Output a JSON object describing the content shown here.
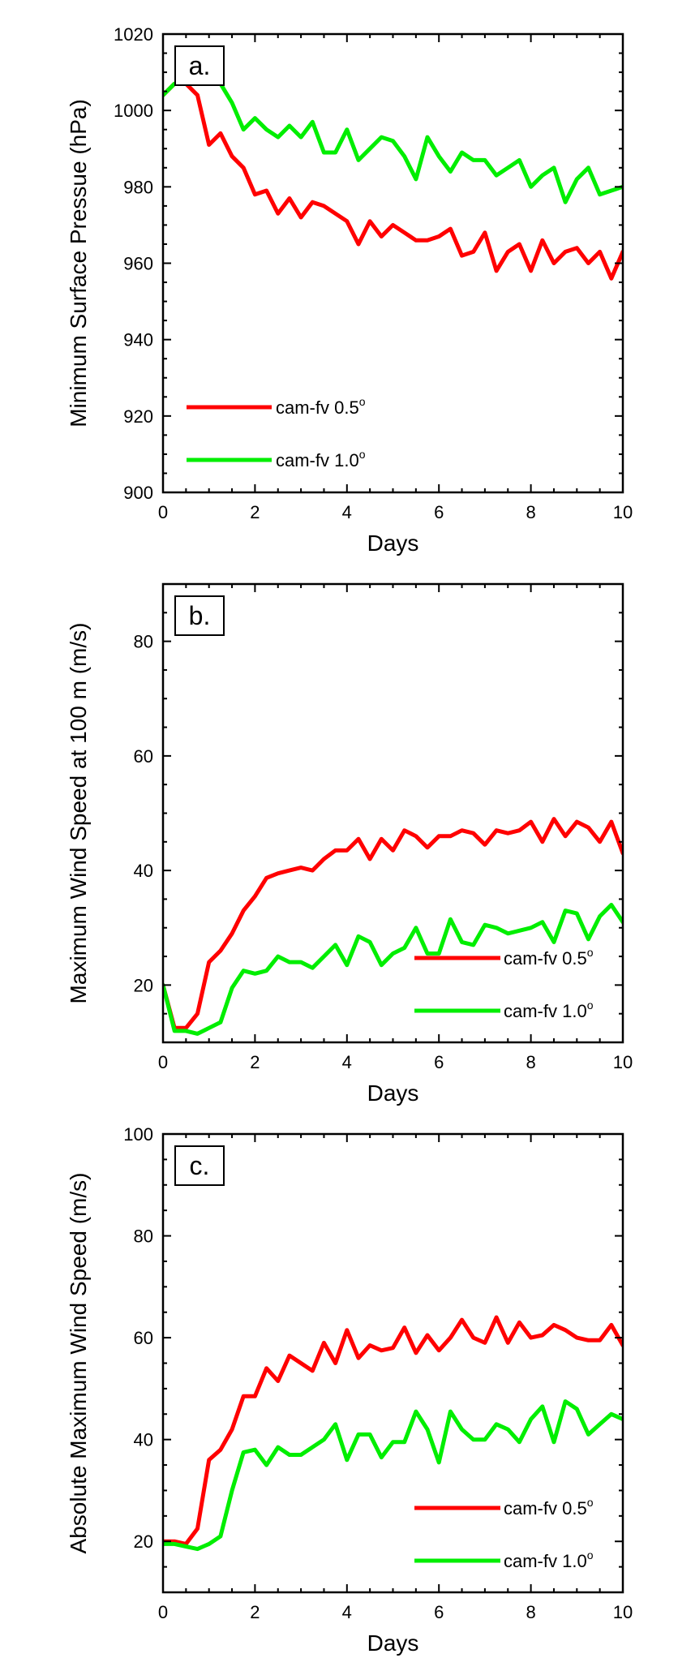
{
  "chart_data": [
    {
      "type": "line",
      "panel_label": "a.",
      "xlabel": "Days",
      "ylabel": "Minimum Surface Pressue (hPa)",
      "xlim": [
        0,
        10
      ],
      "ylim": [
        900,
        1020
      ],
      "xticks": [
        0,
        2,
        4,
        6,
        8,
        10
      ],
      "yticks": [
        900,
        920,
        940,
        960,
        980,
        1000,
        1020
      ],
      "legend_position": "bottom-left",
      "series": [
        {
          "name": "cam-fv 0.5",
          "name_sup": "o",
          "color": "#ff0000",
          "x": [
            0,
            0.25,
            0.5,
            0.75,
            1,
            1.25,
            1.5,
            1.75,
            2,
            2.25,
            2.5,
            2.75,
            3,
            3.25,
            3.5,
            3.75,
            4,
            4.25,
            4.5,
            4.75,
            5,
            5.25,
            5.5,
            5.75,
            6,
            6.25,
            6.5,
            6.75,
            7,
            7.25,
            7.5,
            7.75,
            8,
            8.25,
            8.5,
            8.75,
            9,
            9.25,
            9.5,
            9.75,
            10
          ],
          "y": [
            1004,
            1007,
            1007,
            1004,
            991,
            994,
            988,
            985,
            978,
            979,
            973,
            977,
            972,
            976,
            975,
            973,
            971,
            965,
            971,
            967,
            970,
            968,
            966,
            966,
            967,
            969,
            962,
            963,
            968,
            958,
            963,
            965,
            958,
            966,
            960,
            963,
            964,
            960,
            963,
            956,
            963
          ]
        },
        {
          "name": "cam-fv 1.0",
          "name_sup": "o",
          "color": "#00ee00",
          "x": [
            0,
            0.25,
            0.5,
            0.75,
            1,
            1.25,
            1.5,
            1.75,
            2,
            2.25,
            2.5,
            2.75,
            3,
            3.25,
            3.5,
            3.75,
            4,
            4.25,
            4.5,
            4.75,
            5,
            5.25,
            5.5,
            5.75,
            6,
            6.25,
            6.5,
            6.75,
            7,
            7.25,
            7.5,
            7.75,
            8,
            8.25,
            8.5,
            8.75,
            9,
            9.25,
            9.5,
            9.75,
            10
          ],
          "y": [
            1004,
            1007,
            1007,
            1008,
            1008,
            1007,
            1002,
            995,
            998,
            995,
            993,
            996,
            993,
            997,
            989,
            989,
            995,
            987,
            990,
            993,
            992,
            988,
            982,
            993,
            988,
            984,
            989,
            987,
            987,
            983,
            985,
            987,
            980,
            983,
            985,
            976,
            982,
            985,
            978,
            979,
            980
          ]
        }
      ]
    },
    {
      "type": "line",
      "panel_label": "b.",
      "xlabel": "Days",
      "ylabel": "Maximum Wind Speed at 100 m (m/s)",
      "xlim": [
        0,
        10
      ],
      "ylim": [
        10,
        90
      ],
      "xticks": [
        0,
        2,
        4,
        6,
        8,
        10
      ],
      "yticks": [
        20,
        40,
        60,
        80
      ],
      "legend_position": "bottom-right",
      "series": [
        {
          "name": "cam-fv 0.5",
          "name_sup": "o",
          "color": "#ff0000",
          "x": [
            0,
            0.25,
            0.5,
            0.75,
            1,
            1.25,
            1.5,
            1.75,
            2,
            2.25,
            2.5,
            2.75,
            3,
            3.25,
            3.5,
            3.75,
            4,
            4.25,
            4.5,
            4.75,
            5,
            5.25,
            5.5,
            5.75,
            6,
            6.25,
            6.5,
            6.75,
            7,
            7.25,
            7.5,
            7.75,
            8,
            8.25,
            8.5,
            8.75,
            9,
            9.25,
            9.5,
            9.75,
            10
          ],
          "y": [
            20,
            12.5,
            12.5,
            15,
            24,
            26,
            29,
            33,
            35.5,
            38.7,
            39.5,
            40,
            40.5,
            40,
            42,
            43.5,
            43.5,
            45.5,
            42,
            45.5,
            43.5,
            47,
            46,
            44,
            46,
            46,
            47,
            46.5,
            44.5,
            47,
            46.5,
            47,
            48.5,
            45,
            49,
            46,
            48.5,
            47.5,
            45,
            48.5,
            43
          ]
        },
        {
          "name": "cam-fv 1.0",
          "name_sup": "o",
          "color": "#00ee00",
          "x": [
            0,
            0.25,
            0.5,
            0.75,
            1,
            1.25,
            1.5,
            1.75,
            2,
            2.25,
            2.5,
            2.75,
            3,
            3.25,
            3.5,
            3.75,
            4,
            4.25,
            4.5,
            4.75,
            5,
            5.25,
            5.5,
            5.75,
            6,
            6.25,
            6.5,
            6.75,
            7,
            7.25,
            7.5,
            7.75,
            8,
            8.25,
            8.5,
            8.75,
            9,
            9.25,
            9.5,
            9.75,
            10
          ],
          "y": [
            20,
            12,
            12,
            11.5,
            12.5,
            13.5,
            19.5,
            22.5,
            22,
            22.5,
            25,
            24,
            24,
            23,
            25,
            27,
            23.5,
            28.5,
            27.5,
            23.5,
            25.5,
            26.5,
            30,
            25.5,
            25.5,
            31.5,
            27.5,
            27,
            30.5,
            30,
            29,
            29.5,
            30,
            31,
            27.5,
            33,
            32.5,
            28,
            32,
            34,
            31
          ]
        }
      ]
    },
    {
      "type": "line",
      "panel_label": "c.",
      "xlabel": "Days",
      "ylabel": "Absolute Maximum Wind Speed (m/s)",
      "xlim": [
        0,
        10
      ],
      "ylim": [
        10,
        100
      ],
      "xticks": [
        0,
        2,
        4,
        6,
        8,
        10
      ],
      "yticks": [
        20,
        40,
        60,
        80,
        100
      ],
      "legend_position": "bottom-right",
      "series": [
        {
          "name": "cam-fv 0.5",
          "name_sup": "o",
          "color": "#ff0000",
          "x": [
            0,
            0.25,
            0.5,
            0.75,
            1,
            1.25,
            1.5,
            1.75,
            2,
            2.25,
            2.5,
            2.75,
            3,
            3.25,
            3.5,
            3.75,
            4,
            4.25,
            4.5,
            4.75,
            5,
            5.25,
            5.5,
            5.75,
            6,
            6.25,
            6.5,
            6.75,
            7,
            7.25,
            7.5,
            7.75,
            8,
            8.25,
            8.5,
            8.75,
            9,
            9.25,
            9.5,
            9.75,
            10
          ],
          "y": [
            20,
            20,
            19.5,
            22.5,
            36,
            38,
            42,
            48.5,
            48.5,
            54,
            51.5,
            56.5,
            55,
            53.5,
            59,
            55,
            61.5,
            56,
            58.5,
            57.5,
            58,
            62,
            57,
            60.5,
            57.5,
            60,
            63.5,
            60,
            59,
            64,
            59,
            63,
            60,
            60.5,
            62.5,
            61.5,
            60,
            59.5,
            59.5,
            62.5,
            58.5
          ]
        },
        {
          "name": "cam-fv 1.0",
          "name_sup": "o",
          "color": "#00ee00",
          "x": [
            0,
            0.25,
            0.5,
            0.75,
            1,
            1.25,
            1.5,
            1.75,
            2,
            2.25,
            2.5,
            2.75,
            3,
            3.25,
            3.5,
            3.75,
            4,
            4.25,
            4.5,
            4.75,
            5,
            5.25,
            5.5,
            5.75,
            6,
            6.25,
            6.5,
            6.75,
            7,
            7.25,
            7.5,
            7.75,
            8,
            8.25,
            8.5,
            8.75,
            9,
            9.25,
            9.5,
            9.75,
            10
          ],
          "y": [
            19.5,
            19.5,
            19,
            18.5,
            19.5,
            21,
            30,
            37.5,
            38,
            35,
            38.5,
            37,
            37,
            38.5,
            40,
            43,
            36,
            41,
            41,
            36.5,
            39.5,
            39.5,
            45.5,
            42,
            35.5,
            45.5,
            42,
            40,
            40,
            43,
            42,
            39.5,
            44,
            46.5,
            39.5,
            47.5,
            46,
            41,
            43,
            45,
            44
          ]
        }
      ]
    }
  ]
}
